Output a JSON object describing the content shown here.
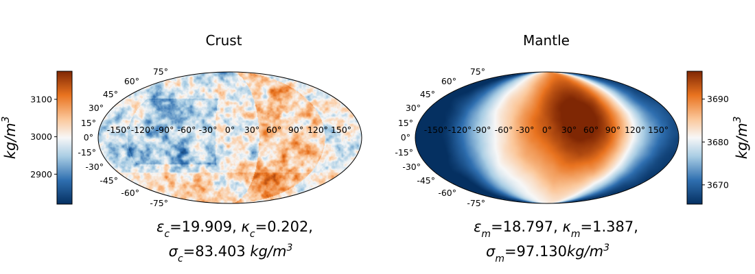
{
  "chart_data": [
    {
      "type": "heatmap",
      "projection": "Mollweide",
      "title": "Crust",
      "colormap": "blue-white-orange (diverging)",
      "colorbar": {
        "side": "left",
        "range": [
          2820,
          3175
        ],
        "ticks": [
          {
            "value": 2900,
            "label": "2900"
          },
          {
            "value": 3000,
            "label": "3000"
          },
          {
            "value": 3100,
            "label": "3100"
          }
        ],
        "label_base": "kg/m",
        "label_exp": "3"
      },
      "lon_labels": [
        "-150°",
        "-120°",
        "-90°",
        "-60°",
        "-30°",
        "0°",
        "30°",
        "60°",
        "90°",
        "120°",
        "150°"
      ],
      "lat_labels": [
        "75°",
        "60°",
        "45°",
        "30°",
        "15°",
        "0°",
        "-15°",
        "-30°",
        "-45°",
        "-60°",
        "-75°"
      ],
      "caption": {
        "line1": [
          {
            "text": "ε",
            "italic": true
          },
          {
            "text": "c",
            "sub": true
          },
          {
            "text": "=19.909, "
          },
          {
            "text": "κ",
            "italic": true
          },
          {
            "text": "c",
            "sub": true
          },
          {
            "text": "=0.202,"
          }
        ],
        "line2": [
          {
            "text": "σ",
            "italic": true
          },
          {
            "text": "c",
            "sub": true
          },
          {
            "text": "=83.403 "
          },
          {
            "text": "kg/m",
            "italic": true
          },
          {
            "text": "3",
            "sup": true
          }
        ]
      },
      "field": {
        "mean": 3000,
        "amplitude": 120,
        "hot_region_lon": [
          40,
          130
        ]
      }
    },
    {
      "type": "heatmap",
      "projection": "Mollweide",
      "title": "Mantle",
      "colormap": "blue-white-orange (diverging)",
      "colorbar": {
        "side": "right",
        "range": [
          3665.5,
          3696.5
        ],
        "ticks": [
          {
            "value": 3670,
            "label": "3670"
          },
          {
            "value": 3680,
            "label": "3680"
          },
          {
            "value": 3690,
            "label": "3690"
          }
        ],
        "label_base": "kg/m",
        "label_exp": "3"
      },
      "lon_labels": [
        "-150°",
        "-120°",
        "-90°",
        "-60°",
        "-30°",
        "0°",
        "30°",
        "60°",
        "90°",
        "120°",
        "150°"
      ],
      "lat_labels": [
        "75°",
        "60°",
        "45°",
        "30°",
        "15°",
        "0°",
        "-15°",
        "-30°",
        "-45°",
        "-60°",
        "-75°"
      ],
      "caption": {
        "line1": [
          {
            "text": "ε",
            "italic": true
          },
          {
            "text": "m",
            "sub": true
          },
          {
            "text": "=18.797, "
          },
          {
            "text": "κ",
            "italic": true
          },
          {
            "text": "m",
            "sub": true
          },
          {
            "text": "=1.387,"
          }
        ],
        "line2": [
          {
            "text": "σ",
            "italic": true
          },
          {
            "text": "m",
            "sub": true
          },
          {
            "text": "=97.130"
          },
          {
            "text": "kg/m",
            "italic": true
          },
          {
            "text": "3",
            "sup": true
          }
        ]
      },
      "field": {
        "max_value": 3695,
        "max_center_lon": 55,
        "max_center_lat": 20,
        "min_value": 3666
      }
    }
  ]
}
